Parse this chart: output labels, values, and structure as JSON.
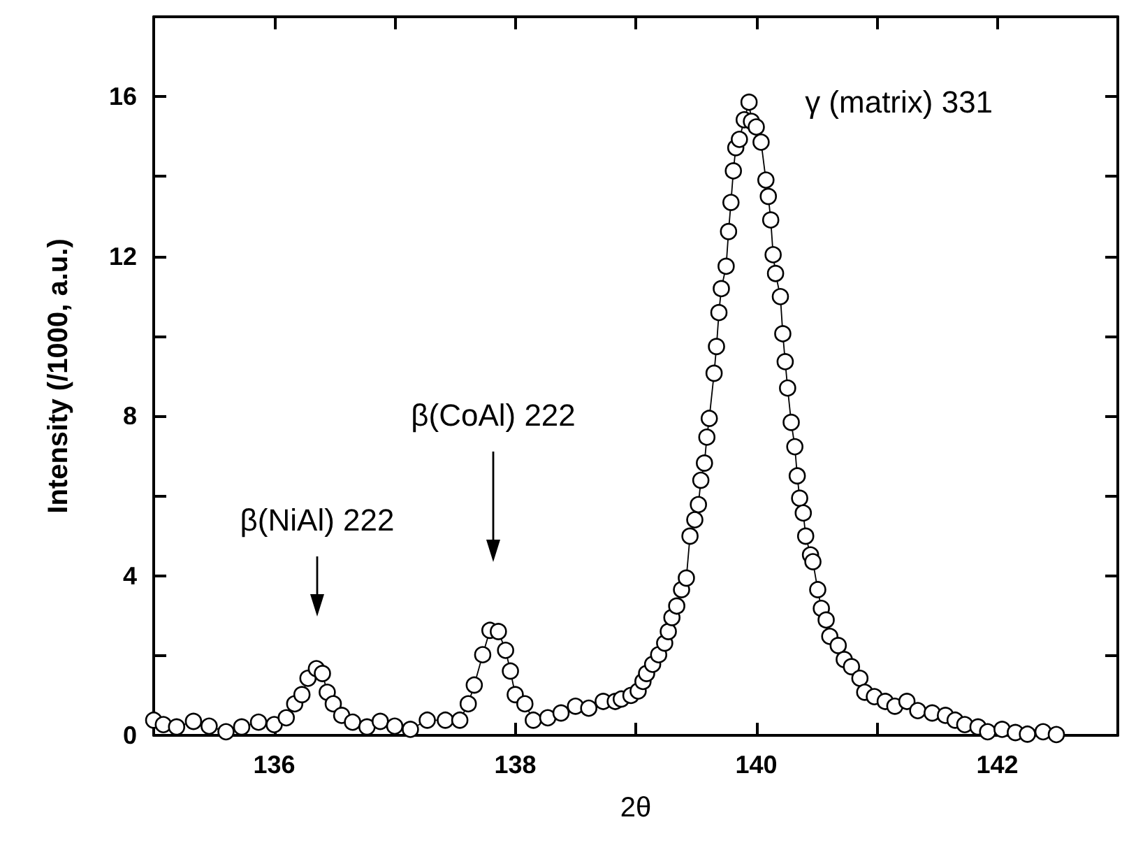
{
  "chart_data": {
    "type": "line",
    "xlabel": "2θ",
    "ylabel": "Intensity (/1000, a.u.)",
    "xlim": [
      135,
      143
    ],
    "ylim": [
      0,
      18
    ],
    "xticks": [
      {
        "value": 135,
        "label": null
      },
      136,
      {
        "value": 137,
        "label": null
      },
      138,
      {
        "value": 139,
        "label": null
      },
      140,
      {
        "value": 141,
        "label": null
      },
      142,
      {
        "value": 143,
        "label": null
      }
    ],
    "yticks": [
      0,
      {
        "value": 2,
        "label": null
      },
      4,
      {
        "value": 6,
        "label": null
      },
      8,
      {
        "value": 10,
        "label": null
      },
      12,
      {
        "value": 14,
        "label": null
      },
      16
    ],
    "marker": "circle",
    "line_style": "solid",
    "grid": false,
    "series": [
      {
        "color": "#000000",
        "x": [
          135.0,
          135.08,
          135.19,
          135.33,
          135.46,
          135.6,
          135.73,
          135.87,
          136.0,
          136.1,
          136.17,
          136.23,
          136.28,
          136.35,
          136.4,
          136.44,
          136.49,
          136.56,
          136.65,
          136.77,
          136.88,
          137.0,
          137.13,
          137.27,
          137.42,
          137.54,
          137.61,
          137.66,
          137.73,
          137.79,
          137.86,
          137.92,
          137.96,
          138.0,
          138.08,
          138.15,
          138.27,
          138.38,
          138.5,
          138.61,
          138.73,
          138.83,
          138.88,
          138.96,
          139.02,
          139.06,
          139.09,
          139.14,
          139.19,
          139.24,
          139.27,
          139.3,
          139.34,
          139.38,
          139.42,
          139.45,
          139.49,
          139.52,
          139.54,
          139.57,
          139.59,
          139.61,
          139.65,
          139.67,
          139.69,
          139.71,
          139.75,
          139.77,
          139.79,
          139.81,
          139.83,
          139.86,
          139.9,
          139.94,
          139.96,
          140.0,
          140.04,
          140.08,
          140.1,
          140.12,
          140.14,
          140.16,
          140.2,
          140.22,
          140.24,
          140.26,
          140.29,
          140.32,
          140.34,
          140.36,
          140.39,
          140.41,
          140.45,
          140.47,
          140.51,
          140.54,
          140.58,
          140.61,
          140.68,
          140.73,
          140.79,
          140.86,
          140.9,
          140.98,
          141.07,
          141.15,
          141.25,
          141.34,
          141.46,
          141.57,
          141.65,
          141.73,
          141.84,
          141.92,
          142.04,
          142.15,
          142.25,
          142.38,
          142.49
        ],
        "values": [
          0.38,
          0.27,
          0.21,
          0.35,
          0.23,
          0.09,
          0.21,
          0.33,
          0.27,
          0.44,
          0.79,
          1.02,
          1.43,
          1.67,
          1.55,
          1.08,
          0.79,
          0.5,
          0.33,
          0.21,
          0.35,
          0.23,
          0.15,
          0.38,
          0.38,
          0.38,
          0.79,
          1.26,
          2.02,
          2.63,
          2.6,
          2.13,
          1.61,
          1.02,
          0.79,
          0.38,
          0.44,
          0.56,
          0.73,
          0.68,
          0.85,
          0.85,
          0.91,
          1.0,
          1.11,
          1.35,
          1.55,
          1.78,
          2.02,
          2.31,
          2.6,
          2.95,
          3.24,
          3.65,
          3.94,
          4.99,
          5.4,
          5.78,
          6.39,
          6.82,
          7.47,
          7.94,
          9.07,
          9.74,
          10.59,
          11.19,
          11.75,
          12.62,
          13.35,
          14.14,
          14.72,
          14.93,
          15.42,
          15.86,
          15.38,
          15.24,
          14.86,
          13.91,
          13.5,
          12.91,
          12.04,
          11.57,
          10.99,
          10.06,
          9.36,
          8.7,
          7.84,
          7.23,
          6.5,
          5.94,
          5.57,
          4.99,
          4.52,
          4.35,
          3.65,
          3.18,
          2.89,
          2.48,
          2.25,
          1.9,
          1.72,
          1.43,
          1.08,
          0.97,
          0.85,
          0.73,
          0.85,
          0.62,
          0.56,
          0.5,
          0.38,
          0.27,
          0.21,
          0.09,
          0.15,
          0.07,
          0.03,
          0.09,
          0.02
        ]
      }
    ],
    "annotations": [
      "β(NiAl) 222",
      "β(CoAl) 222",
      {
        "text": "γ (matrix) 331",
        "x": 139.94,
        "y": 15.86
      }
    ]
  }
}
